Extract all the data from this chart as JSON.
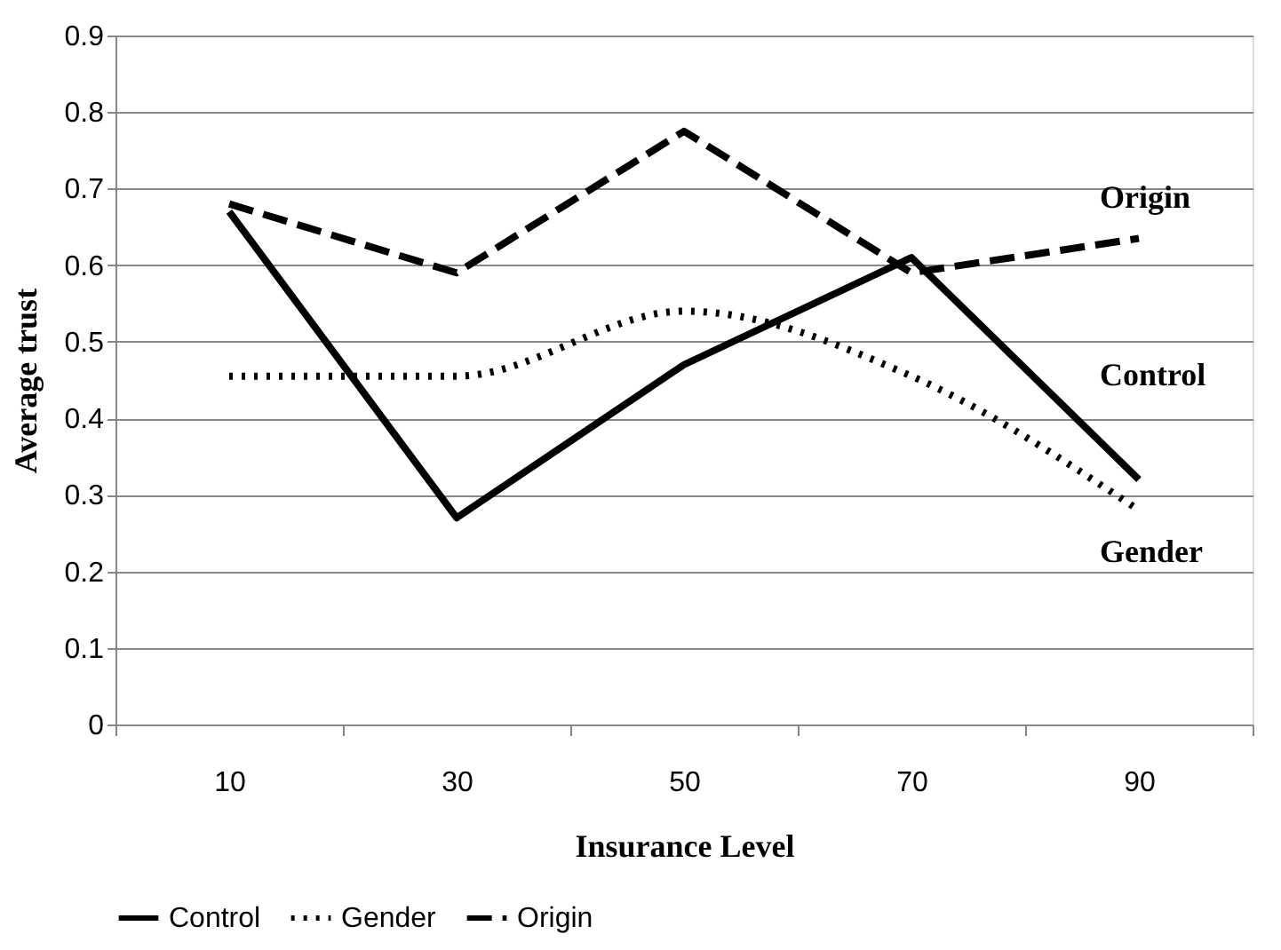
{
  "chart_data": {
    "type": "line",
    "xlabel": "Insurance Level",
    "ylabel": "Average trust",
    "categories": [
      "10",
      "30",
      "50",
      "70",
      "90"
    ],
    "series": [
      {
        "name": "Control",
        "color": "#000000",
        "line_style": "solid",
        "values": [
          0.67,
          0.27,
          0.47,
          0.61,
          0.32
        ]
      },
      {
        "name": "Gender",
        "color": "#000000",
        "line_style": "dotted",
        "values": [
          0.455,
          0.455,
          0.54,
          0.455,
          0.28
        ]
      },
      {
        "name": "Origin",
        "color": "#000000",
        "line_style": "dashed",
        "values": [
          0.68,
          0.59,
          0.775,
          0.59,
          0.635
        ]
      }
    ],
    "ylim": [
      0,
      0.9
    ],
    "yticks": [
      0,
      0.1,
      0.2,
      0.3,
      0.4,
      0.5,
      0.6,
      0.7,
      0.8,
      0.9
    ],
    "grid": "y",
    "legend": "bottom",
    "marker": "none"
  }
}
